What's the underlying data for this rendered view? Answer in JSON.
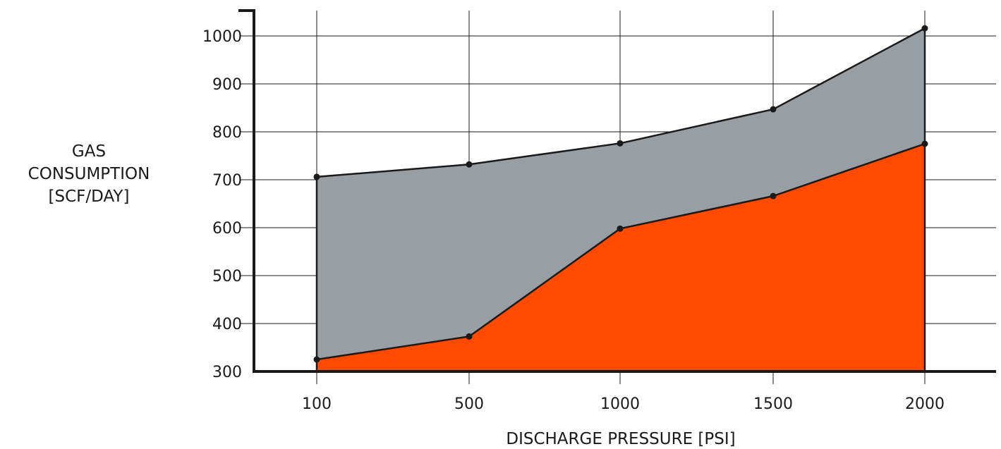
{
  "chart_data": {
    "type": "area",
    "title": "",
    "xlabel": "DISCHARGE PRESSURE [PSI]",
    "ylabel_lines": [
      "GAS",
      "CONSUMPTION",
      "[SCF/DAY]"
    ],
    "categories": [
      "100",
      "500",
      "1000",
      "1500",
      "2000"
    ],
    "x": [
      100,
      500,
      1000,
      1500,
      2000
    ],
    "y_ticks": [
      300,
      400,
      500,
      600,
      700,
      800,
      900,
      1000
    ],
    "ylim": [
      300,
      1050
    ],
    "grid": true,
    "series": [
      {
        "values": [
          325,
          373,
          598,
          666,
          775
        ],
        "color": "#ff4a00"
      },
      {
        "values": [
          706,
          732,
          776,
          847,
          1016
        ],
        "color": "#989fa4"
      }
    ]
  }
}
